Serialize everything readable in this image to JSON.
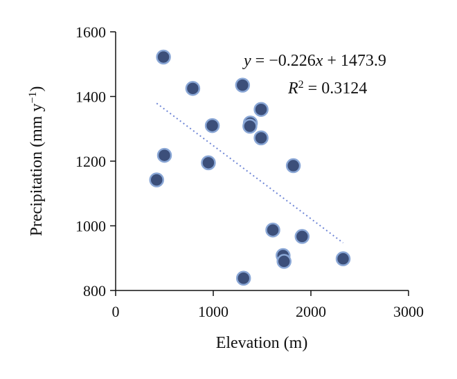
{
  "chart_data": {
    "type": "scatter",
    "xlabel": "Elevation (m)",
    "ylabel": {
      "main": "Precipitation (mm y",
      "sup": "−1",
      "close": ")"
    },
    "xlim": [
      0,
      3000
    ],
    "ylim": [
      800,
      1600
    ],
    "xticks": [
      0,
      1000,
      2000,
      3000
    ],
    "yticks": [
      800,
      1000,
      1200,
      1400,
      1600
    ],
    "xtick_labels": [
      "0",
      "1000",
      "2000",
      "3000"
    ],
    "ytick_labels": [
      "800",
      "1000",
      "1200",
      "1400",
      "1600"
    ],
    "grid": false,
    "marker_color": "#3c4f7a",
    "marker_edge_color": "#8aa7d6",
    "trendline_color": "#6f86d6",
    "points": [
      {
        "x": 490,
        "y": 1522
      },
      {
        "x": 790,
        "y": 1425
      },
      {
        "x": 1300,
        "y": 1435
      },
      {
        "x": 1490,
        "y": 1360
      },
      {
        "x": 1380,
        "y": 1318
      },
      {
        "x": 1375,
        "y": 1308
      },
      {
        "x": 990,
        "y": 1310
      },
      {
        "x": 1490,
        "y": 1272
      },
      {
        "x": 500,
        "y": 1218
      },
      {
        "x": 950,
        "y": 1195
      },
      {
        "x": 1820,
        "y": 1186
      },
      {
        "x": 420,
        "y": 1142
      },
      {
        "x": 1610,
        "y": 987
      },
      {
        "x": 1910,
        "y": 967
      },
      {
        "x": 1715,
        "y": 908
      },
      {
        "x": 1725,
        "y": 890
      },
      {
        "x": 2330,
        "y": 898
      },
      {
        "x": 1310,
        "y": 838
      }
    ],
    "trendline": {
      "slope": -0.226,
      "intercept": 1473.9,
      "x_start": 420,
      "x_end": 2330
    },
    "annotations": {
      "equation": {
        "y": "y",
        "eq": " = −0.226",
        "x": "x",
        "rest": " + 1473.9"
      },
      "r2": {
        "r": "R",
        "sup": "2",
        "rest": " = 0.3124"
      }
    }
  }
}
